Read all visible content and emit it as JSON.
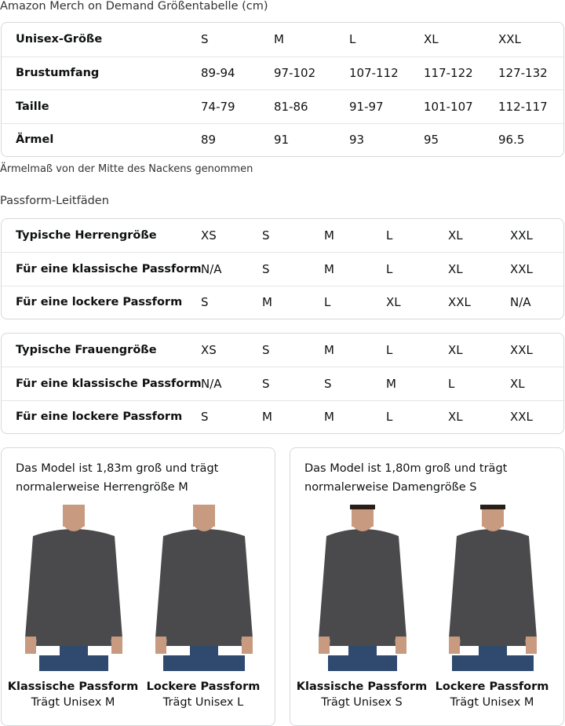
{
  "title": "Amazon Merch on Demand Größentabelle (cm)",
  "size_table": {
    "rows": [
      [
        "Unisex-Größe",
        "S",
        "M",
        "L",
        "XL",
        "XXL"
      ],
      [
        "Brustumfang",
        "89-94",
        "97-102",
        "107-112",
        "117-122",
        "127-132"
      ],
      [
        "Taille",
        "74-79",
        "81-86",
        "91-97",
        "101-107",
        "112-117"
      ],
      [
        "Ärmel",
        "89",
        "91",
        "93",
        "95",
        "96.5"
      ]
    ]
  },
  "note": "Ärmelmaß von der Mitte des Nackens genommen",
  "fit_title": "Passform-Leitfäden",
  "men_table": {
    "rows": [
      [
        "Typische Herrengröße",
        "XS",
        "S",
        "M",
        "L",
        "XL",
        "XXL"
      ],
      [
        "Für eine klassische Passform",
        "N/A",
        "S",
        "M",
        "L",
        "XL",
        "XXL"
      ],
      [
        "Für eine lockere Passform",
        "S",
        "M",
        "L",
        "XL",
        "XXL",
        "N/A"
      ]
    ]
  },
  "women_table": {
    "rows": [
      [
        "Typische Frauengröße",
        "XS",
        "S",
        "M",
        "L",
        "XL",
        "XXL"
      ],
      [
        "Für eine klassische Passform",
        "N/A",
        "S",
        "S",
        "M",
        "L",
        "XL"
      ],
      [
        "Für eine lockere Passform",
        "S",
        "M",
        "M",
        "L",
        "XL",
        "XXL"
      ]
    ]
  },
  "cards": [
    {
      "desc": "Das Model ist 1,83m groß und trägt normalerweise Herrengröße M",
      "fits": [
        {
          "title": "Klassische Passform",
          "sub": "Trägt Unisex M"
        },
        {
          "title": "Lockere Passform",
          "sub": "Trägt Unisex L"
        }
      ]
    },
    {
      "desc": "Das Model ist 1,80m groß und trägt normalerweise Damengröße S",
      "fits": [
        {
          "title": "Klassische Passform",
          "sub": "Trägt Unisex S"
        },
        {
          "title": "Lockere Passform",
          "sub": "Trägt Unisex M"
        }
      ]
    }
  ],
  "colors": {
    "sweater": "#4a4a4c",
    "jeans": "#2f4a6e",
    "skin": "#c89a80",
    "border": "#d5d9d9"
  }
}
